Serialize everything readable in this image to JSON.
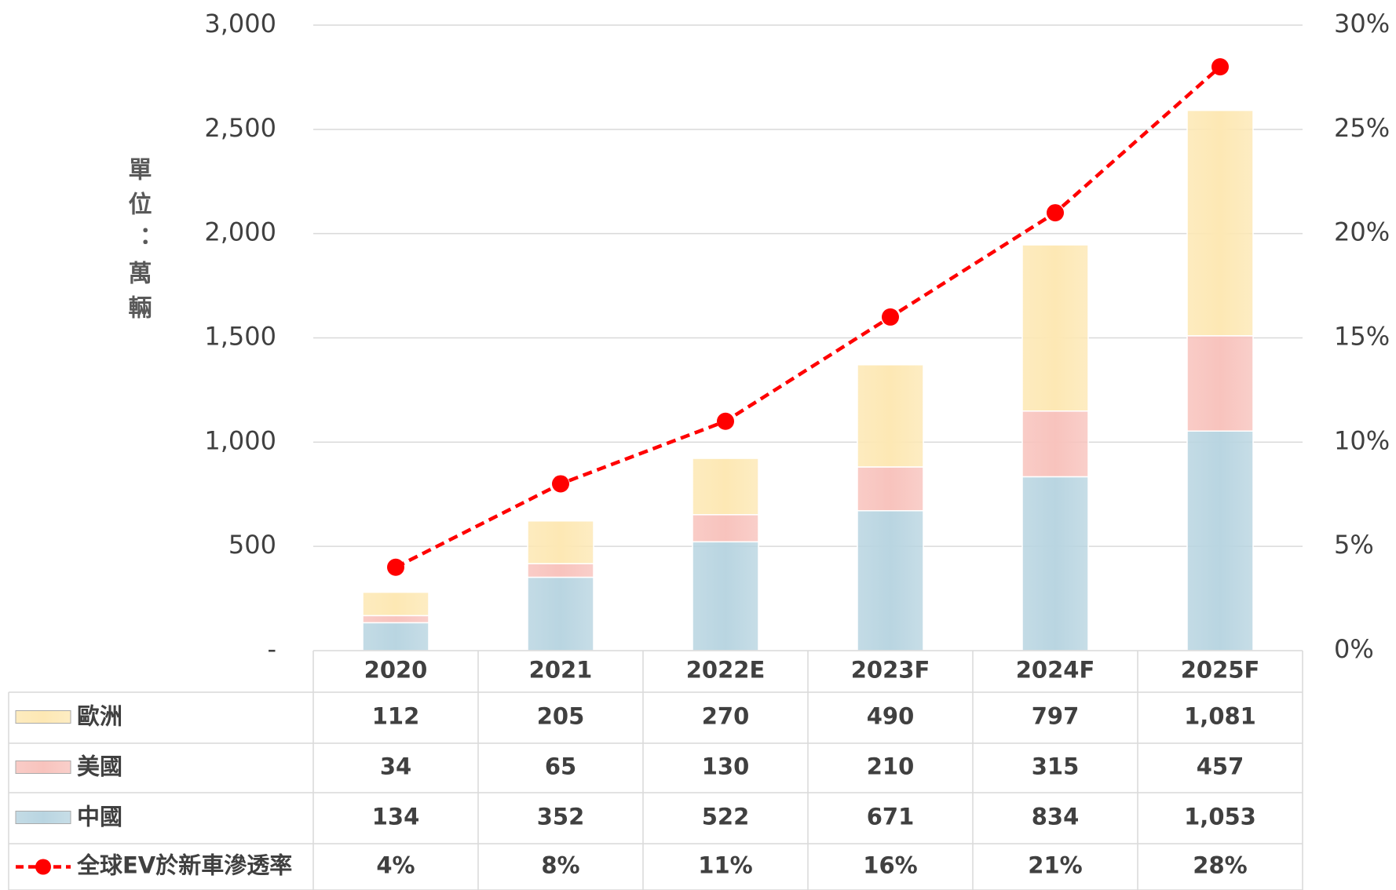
{
  "chart_data": {
    "type": "bar",
    "stacked": true,
    "y_label": "單位：萬輛",
    "categories": [
      "2020",
      "2021",
      "2022E",
      "2023F",
      "2024F",
      "2025F"
    ],
    "series": [
      {
        "name": "中國",
        "color": "#b9d5e1",
        "values": [
          134,
          352,
          522,
          671,
          834,
          1053
        ],
        "value_labels": [
          "134",
          "352",
          "522",
          "671",
          "834",
          "1,053"
        ]
      },
      {
        "name": "美國",
        "color": "#f8c3bd",
        "values": [
          34,
          65,
          130,
          210,
          315,
          457
        ]
      },
      {
        "name": "歐洲",
        "color": "#fde8b4",
        "values": [
          112,
          205,
          270,
          490,
          797,
          1081
        ],
        "value_labels": [
          "112",
          "205",
          "270",
          "490",
          "797",
          "1,081"
        ]
      },
      {
        "name": "全球EV於新車滲透率",
        "type": "line",
        "axis": "y2",
        "color": "#ff0000",
        "values": [
          4,
          8,
          11,
          16,
          21,
          28
        ],
        "value_labels": [
          "4%",
          "8%",
          "11%",
          "16%",
          "21%",
          "28%"
        ]
      }
    ],
    "ylim": [
      0,
      3000
    ],
    "yticks": [
      {
        "value": 0,
        "label": "-"
      },
      500,
      {
        "value": 1000,
        "label": "1,000"
      },
      {
        "value": 1500,
        "label": "1,500"
      },
      {
        "value": 2000,
        "label": "2,000"
      },
      {
        "value": 2500,
        "label": "2,500"
      },
      {
        "value": 3000,
        "label": "3,000"
      }
    ],
    "y2lim": [
      0,
      30
    ],
    "y2ticks": [
      {
        "value": 0,
        "label": "0%"
      },
      {
        "value": 5,
        "label": "5%"
      },
      {
        "value": 10,
        "label": "10%"
      },
      {
        "value": 15,
        "label": "15%"
      },
      {
        "value": 20,
        "label": "20%"
      },
      {
        "value": 25,
        "label": "25%"
      },
      {
        "value": 30,
        "label": "30%"
      }
    ],
    "grid": true
  }
}
